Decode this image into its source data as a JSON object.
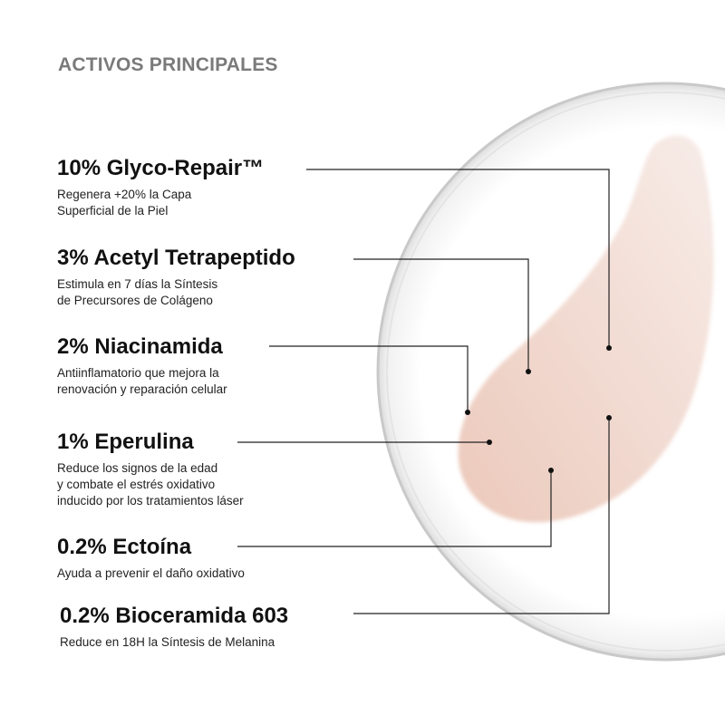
{
  "title": "ACTIVOS PRINCIPALES",
  "colors": {
    "title": "#7a7a7a",
    "cream": "#eed3c8",
    "lines": "#222222"
  },
  "ingredients": [
    {
      "name": "10% Glyco-Repair™",
      "description": "Regenera +20% la Capa\nSuperficial de la Piel"
    },
    {
      "name": "3% Acetyl Tetrapeptido",
      "description": "Estimula en 7 días la Síntesis\nde Precursores de Colágeno"
    },
    {
      "name": "2% Niacinamida",
      "description": "Antiinflamatorio que mejora la\nrenovación y reparación celular"
    },
    {
      "name": "1% Eperulina",
      "description": "Reduce los signos de la edad\ny combate el estrés oxidativo\ninducido por los tratamientos láser"
    },
    {
      "name": "0.2% Ectoína",
      "description": "Ayuda a prevenir el daño oxidativo"
    },
    {
      "name": "0.2% Bioceramida 603",
      "description": "Reduce en 18H la Síntesis de Melanina"
    }
  ]
}
